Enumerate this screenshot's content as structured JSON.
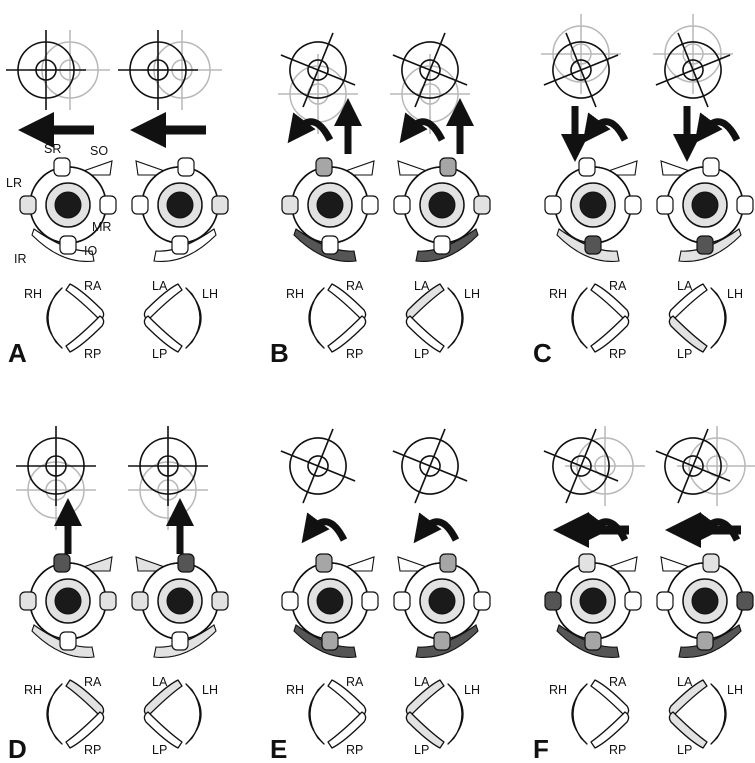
{
  "colors": {
    "stroke": "#111111",
    "light": "#e2e2e2",
    "mid": "#a6a6a6",
    "dark": "#555555",
    "ghost": "#b8b8b8",
    "white": "#ffffff"
  },
  "muscle_labels": {
    "SR": "SR",
    "SO": "SO",
    "LR": "LR",
    "MR": "MR",
    "IR": "IR",
    "IO": "IO"
  },
  "canal_labels": {
    "right": [
      "RH",
      "RA",
      "RP"
    ],
    "left": [
      "LA",
      "LH",
      "LP"
    ]
  },
  "panels": [
    {
      "letter": "A",
      "motion": [
        "arrow-left"
      ],
      "target_icons": [
        "crosshair-shifted-left",
        "crosshair-shifted-left"
      ],
      "canal_fill": {
        "RH": "white",
        "RA": "white",
        "RP": "white",
        "LA": "white",
        "LH": "light",
        "LP": "white"
      }
    },
    {
      "letter": "B",
      "motion": [
        "rotate-ccw",
        "arrow-up"
      ],
      "target_icons": [
        "crosshair-tilted-up",
        "crosshair-tilted-up"
      ],
      "canal_fill": {
        "RH": "white",
        "RA": "white",
        "RP": "white",
        "LA": "light",
        "LH": "white",
        "LP": "white"
      }
    },
    {
      "letter": "C",
      "motion": [
        "arrow-down",
        "rotate-ccw"
      ],
      "target_icons": [
        "crosshair-tilted-down",
        "crosshair-tilted-down"
      ],
      "canal_fill": {
        "RH": "white",
        "RA": "white",
        "RP": "white",
        "LA": "white",
        "LH": "white",
        "LP": "light"
      }
    },
    {
      "letter": "D",
      "motion": [
        "arrow-up"
      ],
      "target_icons": [
        "crosshair-shifted-up",
        "crosshair-shifted-up"
      ],
      "canal_fill": {
        "RH": "white",
        "RA": "light",
        "RP": "white",
        "LA": "light",
        "LH": "white",
        "LP": "white"
      }
    },
    {
      "letter": "E",
      "motion": [
        "rotate-ccw"
      ],
      "target_icons": [
        "crosshair-tilted",
        "crosshair-tilted"
      ],
      "canal_fill": {
        "RH": "white",
        "RA": "white",
        "RP": "white",
        "LA": "light",
        "LH": "white",
        "LP": "light"
      }
    },
    {
      "letter": "F",
      "motion": [
        "arrow-left",
        "rotate-ccw"
      ],
      "target_icons": [
        "crosshair-tilted-left",
        "crosshair-tilted-left"
      ],
      "canal_fill": {
        "RH": "white",
        "RA": "white",
        "RP": "white",
        "LA": "light",
        "LH": "light",
        "LP": "light"
      }
    }
  ]
}
